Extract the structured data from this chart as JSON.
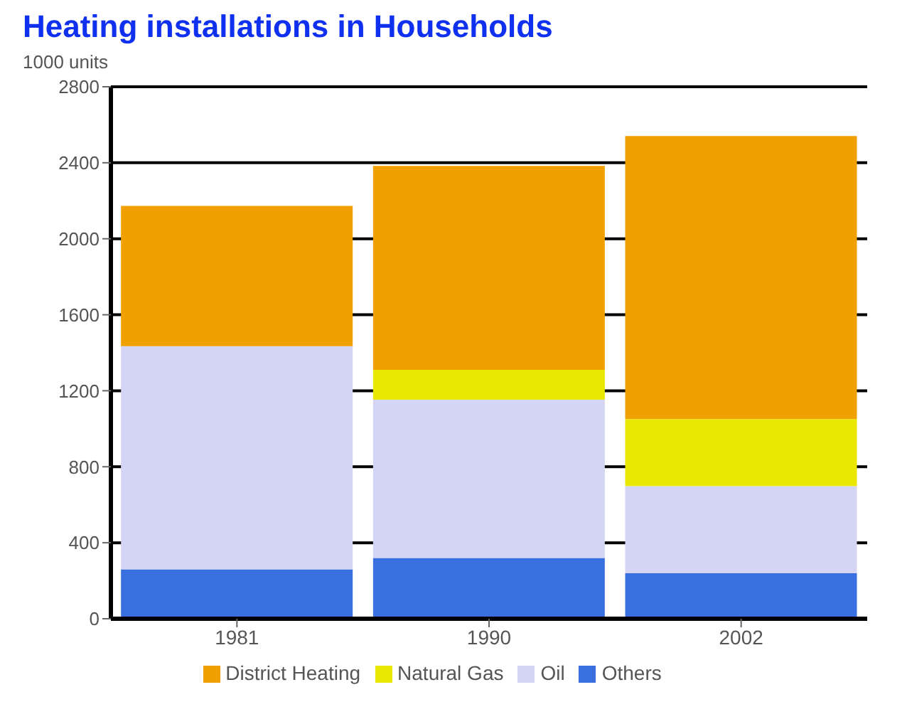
{
  "chart_data": {
    "type": "bar",
    "title": "Heating installations in Households",
    "ylabel": "1000 units",
    "categories": [
      "1981",
      "1990",
      "2002"
    ],
    "stacked": true,
    "series": [
      {
        "name": "Others",
        "color": "#3a6fe0",
        "values": [
          260,
          320,
          240
        ]
      },
      {
        "name": "Oil",
        "color": "#d4d4f4",
        "values": [
          1175,
          833,
          458
        ]
      },
      {
        "name": "Natural Gas",
        "color": "#e8e800",
        "values": [
          null,
          157,
          353
        ]
      },
      {
        "name": "District Heating",
        "color": "#f0a000",
        "values": [
          738,
          1074,
          1490
        ]
      }
    ],
    "ylim": [
      0,
      2800
    ],
    "yticks": [
      0,
      400,
      800,
      1200,
      1600,
      2000,
      2400,
      2800
    ],
    "grid": "y",
    "legend": "bottom"
  }
}
